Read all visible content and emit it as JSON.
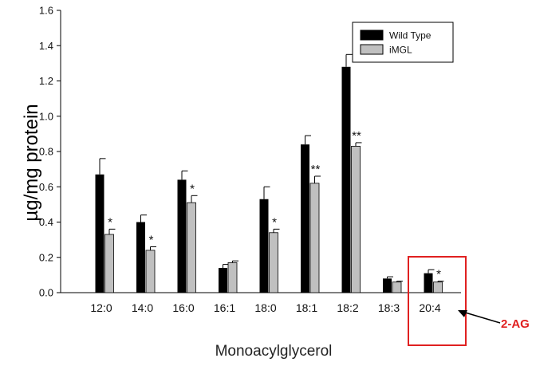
{
  "chart_data": {
    "type": "bar",
    "xlabel": "Monoacylglycerol",
    "ylabel": "µg/mg protein",
    "ylim": [
      0,
      1.6
    ],
    "yticks": [
      "0.0",
      "0.2",
      "0.4",
      "0.6",
      "0.8",
      "1.0",
      "1.2",
      "1.4",
      "1.6"
    ],
    "categories": [
      "12:0",
      "14:0",
      "16:0",
      "16:1",
      "18:0",
      "18:1",
      "18:2",
      "18:3",
      "20:4"
    ],
    "series": [
      {
        "name": "Wild Type",
        "color": "#000000",
        "values": [
          0.67,
          0.4,
          0.64,
          0.14,
          0.53,
          0.84,
          1.28,
          0.08,
          0.11
        ],
        "errors": [
          0.09,
          0.04,
          0.05,
          0.02,
          0.07,
          0.05,
          0.07,
          0.01,
          0.02
        ]
      },
      {
        "name": "iMGL",
        "color": "#c0c0c0",
        "values": [
          0.33,
          0.24,
          0.51,
          0.17,
          0.34,
          0.62,
          0.83,
          0.06,
          0.06
        ],
        "errors": [
          0.03,
          0.02,
          0.04,
          0.01,
          0.02,
          0.04,
          0.02,
          0.005,
          0.005
        ]
      }
    ],
    "significance": [
      "*",
      "*",
      "*",
      "",
      "*",
      "**",
      "**",
      "",
      "*"
    ],
    "legend_position": "top-right",
    "annotation": {
      "label": "2-AG",
      "target_category": "20:4",
      "color": "#e02020"
    }
  }
}
